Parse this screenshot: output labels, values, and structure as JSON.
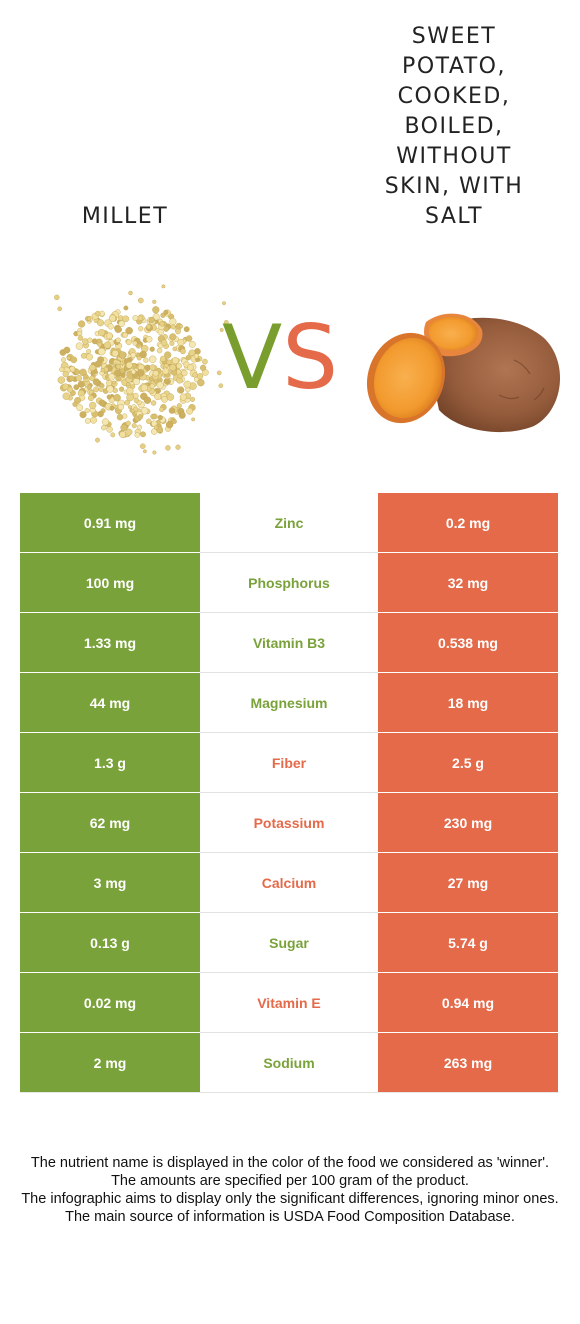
{
  "foods": {
    "left": {
      "name": "Millet",
      "color": "#7aa23a"
    },
    "right": {
      "name": "Sweet potato, cooked, boiled, without skin, with salt",
      "color": "#e46a4a"
    }
  },
  "vs": {
    "v": "V",
    "s": "S"
  },
  "nutrients": [
    {
      "name": "Zinc",
      "left": "0.91 mg",
      "right": "0.2 mg",
      "winner": "left"
    },
    {
      "name": "Phosphorus",
      "left": "100 mg",
      "right": "32 mg",
      "winner": "left"
    },
    {
      "name": "Vitamin B3",
      "left": "1.33 mg",
      "right": "0.538 mg",
      "winner": "left"
    },
    {
      "name": "Magnesium",
      "left": "44 mg",
      "right": "18 mg",
      "winner": "left"
    },
    {
      "name": "Fiber",
      "left": "1.3 g",
      "right": "2.5 g",
      "winner": "right"
    },
    {
      "name": "Potassium",
      "left": "62 mg",
      "right": "230 mg",
      "winner": "right"
    },
    {
      "name": "Calcium",
      "left": "3 mg",
      "right": "27 mg",
      "winner": "right"
    },
    {
      "name": "Sugar",
      "left": "0.13 g",
      "right": "5.74 g",
      "winner": "left"
    },
    {
      "name": "Vitamin E",
      "left": "0.02 mg",
      "right": "0.94 mg",
      "winner": "right"
    },
    {
      "name": "Sodium",
      "left": "2 mg",
      "right": "263 mg",
      "winner": "left"
    }
  ],
  "footer": [
    "The nutrient name is displayed in the color of the food we considered as 'winner'.",
    "The amounts are specified per 100 gram of the product.",
    "The infographic aims to display only the significant differences, ignoring minor ones.",
    "The main source of information is USDA Food Composition Database."
  ]
}
